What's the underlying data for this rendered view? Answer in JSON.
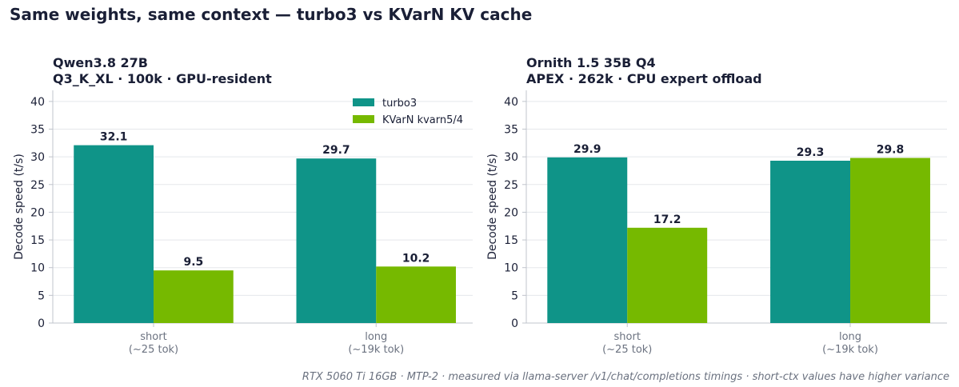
{
  "suptitle": "Same weights, same context — turbo3 vs KVarN KV cache",
  "footnote": "RTX 5060 Ti 16GB · MTP-2 · measured via llama-server /v1/chat/completions timings · short-ctx values have higher variance",
  "colors": {
    "turbo3": "#0f9488",
    "kvarn": "#76b900",
    "grid": "#e5e7eb",
    "axis": "#c0c4cc"
  },
  "chart_data": [
    {
      "type": "bar",
      "title": [
        "Qwen3.8 27B",
        "Q3_K_XL · 100k · GPU-resident"
      ],
      "ylabel": "Decode speed (t/s)",
      "ylim": [
        0,
        42
      ],
      "yticks": [
        0,
        5,
        10,
        15,
        20,
        25,
        30,
        35,
        40
      ],
      "grid": "y",
      "legend": "top-right",
      "categories": [
        [
          "short",
          "(~25 tok)"
        ],
        [
          "long",
          "(~19k tok)"
        ]
      ],
      "series": [
        {
          "name": "turbo3",
          "values": [
            32.1,
            29.7
          ],
          "labels": [
            "32.1",
            "29.7"
          ]
        },
        {
          "name": "KVarN kvarn5/4",
          "values": [
            9.5,
            10.2
          ],
          "labels": [
            "9.5",
            "10.2"
          ]
        }
      ]
    },
    {
      "type": "bar",
      "title": [
        "Ornith 1.5 35B Q4",
        "APEX · 262k · CPU expert offload"
      ],
      "ylabel": "Decode speed (t/s)",
      "ylim": [
        0,
        42
      ],
      "yticks": [
        0,
        5,
        10,
        15,
        20,
        25,
        30,
        35,
        40
      ],
      "grid": "y",
      "categories": [
        [
          "short",
          "(~25 tok)"
        ],
        [
          "long",
          "(~19k tok)"
        ]
      ],
      "series": [
        {
          "name": "turbo3",
          "values": [
            29.9,
            29.3
          ],
          "labels": [
            "29.9",
            "29.3"
          ]
        },
        {
          "name": "KVarN kvarn5/4",
          "values": [
            17.2,
            29.8
          ],
          "labels": [
            "17.2",
            "29.8"
          ]
        }
      ]
    }
  ]
}
